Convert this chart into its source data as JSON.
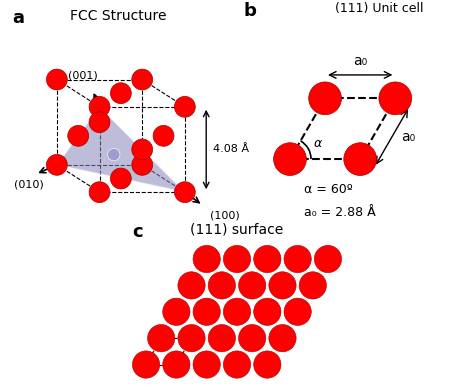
{
  "bg_color": "#ffffff",
  "atom_color": "#ff0000",
  "atom_edge_color": "#cc0000",
  "fcc_title": "FCC Structure",
  "unit_cell_title": "(111) Unit cell",
  "surface_title": "(111) surface",
  "label_a": "a",
  "label_b": "b",
  "label_c": "c",
  "dim_label": "4.08 Å",
  "alpha_label": "α = 60º",
  "a0_label": "a₀ = 2.88 Å",
  "a0_text": "a₀",
  "miller_001": "(001)",
  "miller_010": "(010)",
  "miller_100": "(100)",
  "purple_face_color": "#8888bb",
  "purple_face_alpha": 0.55
}
